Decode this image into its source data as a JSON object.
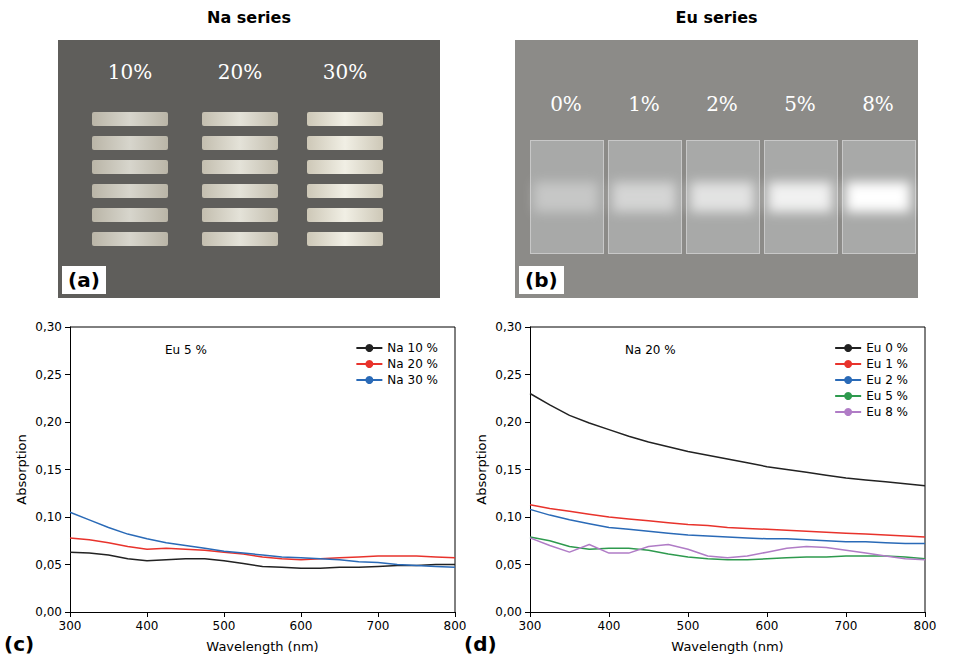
{
  "headers": [
    "Na series",
    "Eu series"
  ],
  "photos": [
    {
      "letter": "(a)",
      "labels": [
        "10%",
        "20%",
        "30%"
      ]
    },
    {
      "letter": "(b)",
      "labels": [
        "0%",
        "1%",
        "2%",
        "5%",
        "8%"
      ]
    }
  ],
  "chart_data": [
    {
      "type": "line",
      "label": "(c)",
      "annotation": "Eu 5 %",
      "x_label": "Wavelength (nm)",
      "y_label": "Absorption",
      "x": [
        300,
        325,
        350,
        375,
        400,
        425,
        450,
        475,
        500,
        525,
        550,
        575,
        600,
        625,
        650,
        675,
        700,
        725,
        750,
        775,
        800
      ],
      "series": [
        {
          "name": "Na 10 %",
          "color": "#222222",
          "values": [
            0.063,
            0.062,
            0.06,
            0.056,
            0.054,
            0.055,
            0.056,
            0.056,
            0.054,
            0.051,
            0.048,
            0.047,
            0.046,
            0.046,
            0.047,
            0.047,
            0.048,
            0.049,
            0.049,
            0.05,
            0.05
          ]
        },
        {
          "name": "Na 20 %",
          "color": "#e8332c",
          "values": [
            0.078,
            0.076,
            0.073,
            0.069,
            0.066,
            0.067,
            0.066,
            0.065,
            0.063,
            0.061,
            0.058,
            0.056,
            0.055,
            0.056,
            0.057,
            0.058,
            0.059,
            0.059,
            0.059,
            0.058,
            0.057
          ]
        },
        {
          "name": "Na 30 %",
          "color": "#2a6ab7",
          "values": [
            0.105,
            0.097,
            0.089,
            0.082,
            0.077,
            0.073,
            0.07,
            0.067,
            0.064,
            0.062,
            0.06,
            0.058,
            0.057,
            0.056,
            0.055,
            0.053,
            0.052,
            0.05,
            0.049,
            0.048,
            0.047
          ]
        }
      ],
      "xlim": [
        300,
        800
      ],
      "xticks": [
        300,
        400,
        500,
        600,
        700,
        800
      ],
      "ylim": [
        0,
        0.3
      ],
      "yticks": [
        {
          "value": 0,
          "label": "0,00"
        },
        {
          "value": 0.05,
          "label": "0,05"
        },
        {
          "value": 0.1,
          "label": "0,10"
        },
        {
          "value": 0.15,
          "label": "0,15"
        },
        {
          "value": 0.2,
          "label": "0,20"
        },
        {
          "value": 0.25,
          "label": "0,25"
        },
        {
          "value": 0.3,
          "label": "0,30"
        }
      ],
      "legend": "top-right",
      "grid": false
    },
    {
      "type": "line",
      "label": "(d)",
      "annotation": "Na 20 %",
      "x_label": "Wavelength (nm)",
      "y_label": "Absorption",
      "x": [
        300,
        325,
        350,
        375,
        400,
        425,
        450,
        475,
        500,
        525,
        550,
        575,
        600,
        625,
        650,
        675,
        700,
        725,
        750,
        775,
        800
      ],
      "series": [
        {
          "name": "Eu 0 %",
          "color": "#222222",
          "values": [
            0.23,
            0.218,
            0.207,
            0.199,
            0.192,
            0.185,
            0.179,
            0.174,
            0.169,
            0.165,
            0.161,
            0.157,
            0.153,
            0.15,
            0.147,
            0.144,
            0.141,
            0.139,
            0.137,
            0.135,
            0.133
          ]
        },
        {
          "name": "Eu 1 %",
          "color": "#e8332c",
          "values": [
            0.113,
            0.109,
            0.106,
            0.103,
            0.1,
            0.098,
            0.096,
            0.094,
            0.092,
            0.091,
            0.089,
            0.088,
            0.087,
            0.086,
            0.085,
            0.084,
            0.083,
            0.082,
            0.081,
            0.08,
            0.079
          ]
        },
        {
          "name": "Eu 2 %",
          "color": "#2a6ab7",
          "values": [
            0.108,
            0.102,
            0.097,
            0.093,
            0.089,
            0.087,
            0.085,
            0.083,
            0.081,
            0.08,
            0.079,
            0.078,
            0.077,
            0.077,
            0.076,
            0.075,
            0.074,
            0.074,
            0.073,
            0.072,
            0.072
          ]
        },
        {
          "name": "Eu 5 %",
          "color": "#2e9a4e",
          "values": [
            0.079,
            0.075,
            0.069,
            0.066,
            0.067,
            0.067,
            0.065,
            0.061,
            0.058,
            0.056,
            0.055,
            0.055,
            0.056,
            0.057,
            0.058,
            0.058,
            0.059,
            0.059,
            0.059,
            0.058,
            0.056
          ]
        },
        {
          "name": "Eu 8 %",
          "color": "#b07cc6",
          "values": [
            0.078,
            0.07,
            0.063,
            0.071,
            0.062,
            0.062,
            0.069,
            0.071,
            0.066,
            0.059,
            0.057,
            0.059,
            0.063,
            0.067,
            0.069,
            0.068,
            0.065,
            0.062,
            0.059,
            0.056,
            0.055
          ]
        }
      ],
      "xlim": [
        300,
        800
      ],
      "xticks": [
        300,
        400,
        500,
        600,
        700,
        800
      ],
      "ylim": [
        0,
        0.3
      ],
      "yticks": [
        {
          "value": 0,
          "label": "0,00"
        },
        {
          "value": 0.05,
          "label": "0,05"
        },
        {
          "value": 0.1,
          "label": "0,10"
        },
        {
          "value": 0.15,
          "label": "0,15"
        },
        {
          "value": 0.2,
          "label": "0,20"
        },
        {
          "value": 0.25,
          "label": "0,25"
        },
        {
          "value": 0.3,
          "label": "0,30"
        }
      ],
      "legend": "top-right",
      "grid": false
    }
  ]
}
